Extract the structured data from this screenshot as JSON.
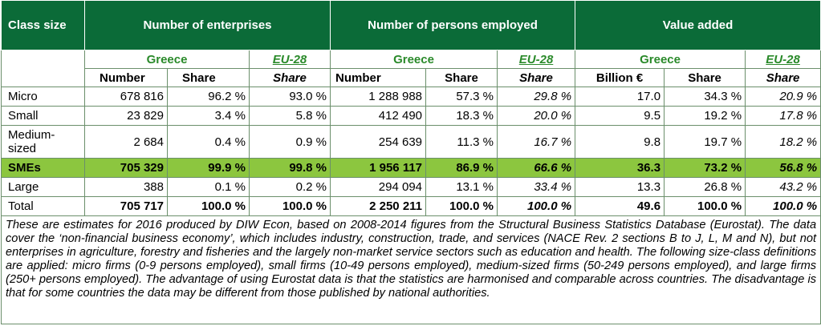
{
  "header": {
    "class_size": "Class size",
    "enterprises": "Number of enterprises",
    "employed": "Number of persons employed",
    "value_added": "Value added"
  },
  "geo": {
    "greece": "Greece",
    "eu": "EU-28"
  },
  "sub": {
    "number": "Number",
    "share": "Share",
    "billion": "Billion €"
  },
  "rows": [
    {
      "label": "Micro",
      "e_num": "678 816",
      "e_share": "96.2 %",
      "e_eu": "93.0 %",
      "p_num": "1 288 988",
      "p_share": "57.3 %",
      "p_eu": "29.8 %",
      "v_bn": "17.0",
      "v_share": "34.3 %",
      "v_eu": "20.9 %"
    },
    {
      "label": "Small",
      "e_num": "23 829",
      "e_share": "3.4 %",
      "e_eu": "5.8 %",
      "p_num": "412 490",
      "p_share": "18.3 %",
      "p_eu": "20.0 %",
      "v_bn": "9.5",
      "v_share": "19.2 %",
      "v_eu": "17.8 %"
    },
    {
      "label": "Medium-sized",
      "e_num": "2 684",
      "e_share": "0.4 %",
      "e_eu": "0.9 %",
      "p_num": "254 639",
      "p_share": "11.3 %",
      "p_eu": "16.7 %",
      "v_bn": "9.8",
      "v_share": "19.7 %",
      "v_eu": "18.2 %"
    },
    {
      "label": "SMEs",
      "e_num": "705 329",
      "e_share": "99.9 %",
      "e_eu": "99.8 %",
      "p_num": "1 956 117",
      "p_share": "86.9 %",
      "p_eu": "66.6 %",
      "v_bn": "36.3",
      "v_share": "73.2 %",
      "v_eu": "56.8 %"
    },
    {
      "label": "Large",
      "e_num": "388",
      "e_share": "0.1 %",
      "e_eu": "0.2 %",
      "p_num": "294 094",
      "p_share": "13.1 %",
      "p_eu": "33.4 %",
      "v_bn": "13.3",
      "v_share": "26.8 %",
      "v_eu": "43.2 %"
    },
    {
      "label": "Total",
      "e_num": "705 717",
      "e_share": "100.0 %",
      "e_eu": "100.0 %",
      "p_num": "2 250 211",
      "p_share": "100.0 %",
      "p_eu": "100.0 %",
      "v_bn": "49.6",
      "v_share": "100.0 %",
      "v_eu": "100.0 %"
    }
  ],
  "note": "These are estimates for 2016 produced by DIW Econ, based on 2008-2014 figures from the Structural Business Statistics Database (Eurostat). The data cover the ‘non-financial business economy’, which includes industry, construction, trade, and services (NACE Rev. 2 sections B to J, L, M and N), but not enterprises in agriculture, forestry and fisheries and the largely non-market service sectors such as education and health. The following size-class definitions are applied: micro firms (0-9 persons employed), small firms (10-49 persons employed), medium-sized firms (50-249 persons employed), and large firms (250+ persons employed). The advantage of using Eurostat data is that the statistics are harmonised and comparable across countries. The disadvantage is that for some countries the data may be different from those published by national authorities.",
  "colors": {
    "header_bg": "#0b6b38",
    "sme_bg": "#8cc63f",
    "greece_text": "#2a8a2a"
  }
}
